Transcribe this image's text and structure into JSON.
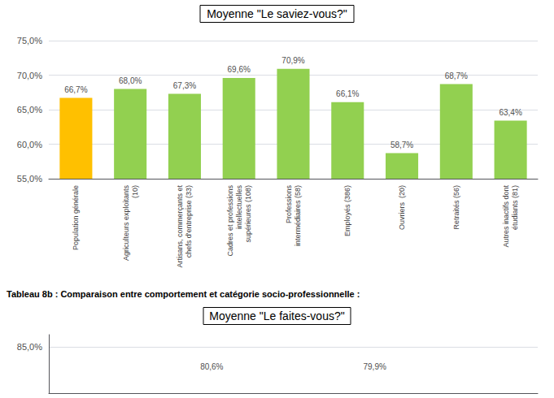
{
  "chart_data": [
    {
      "type": "bar",
      "title": "Moyenne \"Le saviez-vous?\"",
      "categories": [
        "Population générale",
        "Agriculteurs exploitants\n(10)",
        "Artisans, commerçants et\nchefs d'entreprise (33)",
        "Cadres et professions\nintellectuelles\nsupérieures (108)",
        "Professions\nintermédiaires (58)",
        "Employés (386)",
        "Ouvriers  (20)",
        "Retraités (56)",
        "Autres inactifs dont\nétudiants (81)"
      ],
      "values": [
        0.667,
        0.68,
        0.673,
        0.696,
        0.709,
        0.661,
        0.587,
        0.687,
        0.634
      ],
      "value_labels": [
        "66,7%",
        "68,0%",
        "67,3%",
        "69,6%",
        "70,9%",
        "66,1%",
        "58,7%",
        "68,7%",
        "63,4%"
      ],
      "colors": [
        "#FFC000",
        "#92D050",
        "#92D050",
        "#92D050",
        "#92D050",
        "#92D050",
        "#92D050",
        "#92D050",
        "#92D050"
      ],
      "ylim": [
        0.55,
        0.75
      ],
      "yticks": [
        {
          "value": 0.55,
          "label": "55,0%"
        },
        {
          "value": 0.6,
          "label": "60,0%"
        },
        {
          "value": 0.65,
          "label": "65,0%"
        },
        {
          "value": 0.7,
          "label": "70,0%"
        },
        {
          "value": 0.75,
          "label": "75,0%"
        }
      ],
      "grid": true,
      "data_labels": true
    },
    {
      "type": "bar",
      "subtitle": "Tableau 8b : Comparaison entre comportement et catégorie socio-professionnelle :",
      "title": "Moyenne \"Le faites-vous?\"",
      "ylim": [
        0.775,
        0.87
      ],
      "yticks": [
        {
          "value": 0.85,
          "label": "85,0%"
        }
      ],
      "grid": true,
      "tick_labels": "y",
      "annotations": [
        "80,6%",
        "79,9%"
      ]
    }
  ]
}
